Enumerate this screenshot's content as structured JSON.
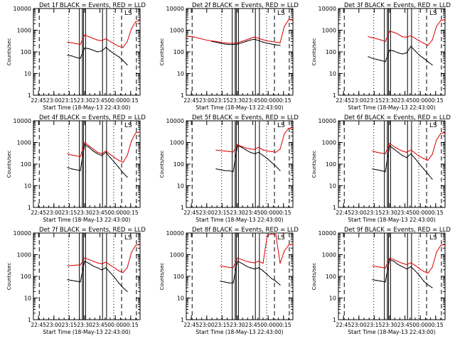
{
  "figure": {
    "shared": {
      "xlabel": "Start Time (18-May-13 22:43:00)",
      "ylabel": "Counts/sec",
      "x_tick_labels": [
        "22:45",
        "23:00",
        "23:15",
        "23:30",
        "23:45",
        "00:00",
        "00:15"
      ],
      "y_tick_labels": [
        "1",
        "10",
        "100",
        "1000",
        "10000"
      ],
      "colors": {
        "events": "#000000",
        "lld": "#dd0000",
        "axes": "#000000"
      }
    }
  },
  "chart_data": [
    {
      "type": "line",
      "title": "Det 1f BLACK = Events, RED = LLD",
      "legend_mark": "LS",
      "xlabel": "Start Time (18-May-13 22:43:00)",
      "ylabel": "Counts/sec",
      "yscale": "log",
      "ylim": [
        1,
        10000
      ],
      "xlim": [
        0,
        100
      ],
      "vertical_lines": {
        "dashed": [
          5.5,
          82.7,
          96.6
        ],
        "dotted": [
          33.1,
          75.3
        ],
        "solid": [
          43.1,
          45.9,
          46.9,
          48.9,
          64.8,
          68.6
        ]
      },
      "x": [
        0,
        4,
        8,
        12,
        16,
        20,
        24,
        28,
        32,
        36,
        40,
        44,
        48,
        52,
        56,
        60,
        64,
        68,
        72,
        76,
        80,
        84,
        88,
        92,
        96,
        100
      ],
      "series": [
        {
          "name": "Events",
          "values": [
            null,
            null,
            null,
            null,
            null,
            null,
            null,
            null,
            70,
            65,
            55,
            50,
            150,
            140,
            120,
            100,
            110,
            160,
            110,
            80,
            60,
            40,
            25,
            null,
            null,
            null
          ]
        },
        {
          "name": "LLD",
          "values": [
            null,
            null,
            null,
            null,
            null,
            null,
            null,
            null,
            280,
            260,
            240,
            220,
            600,
            500,
            420,
            350,
            330,
            400,
            300,
            230,
            180,
            160,
            300,
            1200,
            2500,
            2800
          ]
        }
      ]
    },
    {
      "type": "line",
      "title": "Det 2f BLACK = Events, RED = LLD",
      "legend_mark": "LS",
      "xlabel": "Start Time (18-May-13 22:43:00)",
      "ylabel": "Counts/sec",
      "yscale": "log",
      "ylim": [
        1,
        10000
      ],
      "xlim": [
        0,
        100
      ],
      "vertical_lines": {
        "dashed": [
          5.5,
          82.7,
          96.6
        ],
        "dotted": [
          33.1,
          75.3
        ],
        "solid": [
          43.1,
          45.9,
          46.9,
          48.9,
          64.8,
          68.6
        ]
      },
      "x": [
        0,
        4,
        8,
        12,
        16,
        20,
        24,
        28,
        32,
        36,
        40,
        44,
        48,
        52,
        56,
        60,
        64,
        68,
        72,
        76,
        80,
        84,
        88,
        92,
        96,
        100
      ],
      "series": [
        {
          "name": "Events",
          "values": [
            null,
            null,
            null,
            null,
            null,
            null,
            300,
            280,
            250,
            230,
            220,
            220,
            230,
            260,
            300,
            350,
            380,
            330,
            280,
            250,
            230,
            210,
            200,
            null,
            null,
            null
          ]
        },
        {
          "name": "LLD",
          "values": [
            500,
            520,
            480,
            420,
            380,
            340,
            320,
            300,
            280,
            260,
            250,
            250,
            260,
            300,
            350,
            420,
            480,
            420,
            360,
            320,
            300,
            280,
            260,
            1500,
            3000,
            3200
          ]
        }
      ]
    },
    {
      "type": "line",
      "title": "Det 3f BLACK = Events, RED = LLD",
      "legend_mark": "LS",
      "xlabel": "Start Time (18-May-13 22:43:00)",
      "ylabel": "Counts/sec",
      "yscale": "log",
      "ylim": [
        1,
        10000
      ],
      "xlim": [
        0,
        100
      ],
      "vertical_lines": {
        "dashed": [
          5.5,
          82.7,
          96.6
        ],
        "dotted": [
          33.1,
          75.3
        ],
        "solid": [
          43.1,
          45.9,
          46.9,
          48.9,
          64.8,
          68.6
        ]
      },
      "x": [
        0,
        4,
        8,
        12,
        16,
        20,
        24,
        28,
        32,
        36,
        40,
        44,
        48,
        52,
        56,
        60,
        64,
        68,
        72,
        76,
        80,
        84,
        88,
        92,
        96,
        100
      ],
      "series": [
        {
          "name": "Events",
          "values": [
            null,
            null,
            null,
            null,
            null,
            null,
            null,
            60,
            50,
            45,
            40,
            35,
            120,
            110,
            90,
            80,
            90,
            180,
            110,
            70,
            50,
            35,
            25,
            null,
            null,
            null
          ]
        },
        {
          "name": "LLD",
          "values": [
            null,
            null,
            null,
            null,
            null,
            null,
            null,
            500,
            450,
            400,
            350,
            300,
            900,
            800,
            650,
            500,
            480,
            550,
            420,
            320,
            250,
            200,
            350,
            1500,
            2800,
            3000
          ]
        }
      ]
    },
    {
      "type": "line",
      "title": "Det 4f BLACK = Events, RED = LLD",
      "legend_mark": "LS",
      "xlabel": "Start Time (18-May-13 22:43:00)",
      "ylabel": "Counts/sec",
      "yscale": "log",
      "ylim": [
        1,
        10000
      ],
      "xlim": [
        0,
        100
      ],
      "vertical_lines": {
        "dashed": [
          5.5,
          82.7,
          96.6
        ],
        "dotted": [
          33.1,
          75.3
        ],
        "solid": [
          43.1,
          45.9,
          46.9,
          48.9,
          64.8,
          68.6
        ]
      },
      "x": [
        0,
        4,
        8,
        12,
        16,
        20,
        24,
        28,
        32,
        36,
        40,
        44,
        48,
        52,
        56,
        60,
        64,
        68,
        72,
        76,
        80,
        84,
        88,
        92,
        96,
        100
      ],
      "series": [
        {
          "name": "Events",
          "values": [
            null,
            null,
            null,
            null,
            null,
            null,
            null,
            null,
            70,
            60,
            55,
            50,
            800,
            600,
            400,
            300,
            250,
            350,
            200,
            120,
            70,
            40,
            25,
            null,
            null,
            null
          ]
        },
        {
          "name": "LLD",
          "values": [
            null,
            null,
            null,
            null,
            null,
            null,
            null,
            null,
            300,
            260,
            240,
            220,
            1000,
            700,
            500,
            350,
            300,
            400,
            280,
            200,
            150,
            120,
            250,
            1200,
            2800,
            3000
          ]
        }
      ]
    },
    {
      "type": "line",
      "title": "Det 5f BLACK = Events, RED = LLD",
      "legend_mark": "LS",
      "xlabel": "Start Time (18-May-13 22:43:00)",
      "ylabel": "Counts/sec",
      "yscale": "log",
      "ylim": [
        1,
        10000
      ],
      "xlim": [
        0,
        100
      ],
      "vertical_lines": {
        "dashed": [
          5.5,
          82.7,
          96.6
        ],
        "dotted": [
          33.1,
          75.3
        ],
        "solid": [
          43.1,
          45.9,
          46.9,
          48.9,
          64.8,
          68.6
        ]
      },
      "x": [
        0,
        4,
        8,
        12,
        16,
        20,
        24,
        28,
        32,
        36,
        40,
        44,
        48,
        52,
        56,
        60,
        64,
        68,
        72,
        76,
        80,
        84,
        88,
        92,
        96,
        100
      ],
      "series": [
        {
          "name": "Events",
          "values": [
            null,
            null,
            null,
            null,
            null,
            null,
            null,
            60,
            55,
            50,
            50,
            45,
            700,
            600,
            450,
            350,
            300,
            350,
            250,
            180,
            120,
            80,
            50,
            null,
            null,
            null
          ]
        },
        {
          "name": "LLD",
          "values": [
            null,
            null,
            null,
            null,
            null,
            null,
            null,
            450,
            420,
            400,
            380,
            360,
            800,
            650,
            550,
            500,
            480,
            600,
            450,
            400,
            380,
            350,
            500,
            2500,
            4500,
            4800
          ]
        }
      ]
    },
    {
      "type": "line",
      "title": "Det 6f BLACK = Events, RED = LLD",
      "legend_mark": "LS",
      "xlabel": "Start Time (18-May-13 22:43:00)",
      "ylabel": "Counts/sec",
      "yscale": "log",
      "ylim": [
        1,
        10000
      ],
      "xlim": [
        0,
        100
      ],
      "vertical_lines": {
        "dashed": [
          5.5,
          82.7,
          96.6
        ],
        "dotted": [
          33.1,
          75.3
        ],
        "solid": [
          43.1,
          45.9,
          46.9,
          48.9,
          64.8,
          68.6
        ]
      },
      "x": [
        0,
        4,
        8,
        12,
        16,
        20,
        24,
        28,
        32,
        36,
        40,
        44,
        48,
        52,
        56,
        60,
        64,
        68,
        72,
        76,
        80,
        84,
        88,
        92,
        96,
        100
      ],
      "series": [
        {
          "name": "Events",
          "values": [
            null,
            null,
            null,
            null,
            null,
            null,
            null,
            null,
            60,
            55,
            50,
            45,
            700,
            500,
            350,
            250,
            200,
            300,
            180,
            100,
            60,
            35,
            20,
            null,
            null,
            null
          ]
        },
        {
          "name": "LLD",
          "values": [
            null,
            null,
            null,
            null,
            null,
            null,
            null,
            null,
            400,
            350,
            320,
            300,
            900,
            650,
            500,
            400,
            350,
            450,
            320,
            230,
            180,
            150,
            280,
            1300,
            2600,
            2800
          ]
        }
      ]
    },
    {
      "type": "line",
      "title": "Det 7f BLACK = Events, RED = LLD",
      "legend_mark": "LS",
      "xlabel": "Start Time (18-May-13 22:43:00)",
      "ylabel": "Counts/sec",
      "yscale": "log",
      "ylim": [
        1,
        10000
      ],
      "xlim": [
        0,
        100
      ],
      "vertical_lines": {
        "dashed": [
          5.5,
          82.7,
          96.6
        ],
        "dotted": [
          33.1,
          75.3
        ],
        "solid": [
          43.1,
          45.9,
          46.9,
          48.9,
          64.8,
          68.6
        ]
      },
      "x": [
        0,
        4,
        8,
        12,
        16,
        20,
        24,
        28,
        32,
        36,
        40,
        44,
        48,
        52,
        56,
        60,
        64,
        68,
        72,
        76,
        80,
        84,
        88,
        92,
        96,
        100
      ],
      "series": [
        {
          "name": "Events",
          "values": [
            null,
            null,
            null,
            null,
            null,
            null,
            null,
            null,
            70,
            65,
            60,
            55,
            500,
            400,
            300,
            250,
            200,
            250,
            150,
            90,
            50,
            30,
            20,
            null,
            null,
            null
          ]
        },
        {
          "name": "LLD",
          "values": [
            null,
            null,
            null,
            null,
            null,
            null,
            null,
            null,
            300,
            320,
            330,
            340,
            700,
            600,
            500,
            420,
            380,
            450,
            330,
            250,
            180,
            150,
            250,
            1300,
            2700,
            2900
          ]
        }
      ]
    },
    {
      "type": "line",
      "title": "Det 8f BLACK = Events, RED = LLD",
      "legend_mark": "LS",
      "xlabel": "Start Time (18-May-13 22:43:00)",
      "ylabel": "Counts/sec",
      "yscale": "log",
      "ylim": [
        1,
        10000
      ],
      "xlim": [
        0,
        100
      ],
      "vertical_lines": {
        "dashed": [
          5.5,
          82.7,
          96.6
        ],
        "dotted": [
          33.1,
          75.3
        ],
        "solid": [
          43.1,
          45.9,
          46.9,
          48.9,
          64.8,
          68.6
        ]
      },
      "x": [
        0,
        4,
        8,
        12,
        16,
        20,
        24,
        28,
        32,
        36,
        40,
        44,
        48,
        52,
        56,
        60,
        64,
        68,
        72,
        76,
        80,
        84,
        88,
        92,
        96,
        100
      ],
      "series": [
        {
          "name": "Events",
          "values": [
            null,
            null,
            null,
            null,
            null,
            null,
            null,
            null,
            60,
            55,
            50,
            50,
            500,
            400,
            300,
            250,
            220,
            250,
            180,
            120,
            80,
            60,
            40,
            null,
            null,
            null
          ]
        },
        {
          "name": "LLD",
          "values": [
            null,
            null,
            null,
            null,
            null,
            null,
            null,
            null,
            300,
            280,
            260,
            250,
            700,
            600,
            500,
            450,
            420,
            500,
            400,
            8000,
            9000,
            8500,
            400,
            1500,
            2800,
            3000
          ]
        }
      ]
    },
    {
      "type": "line",
      "title": "Det 9f BLACK = Events, RED = LLD",
      "legend_mark": "LS",
      "xlabel": "Start Time (18-May-13 22:43:00)",
      "ylabel": "Counts/sec",
      "yscale": "log",
      "ylim": [
        1,
        10000
      ],
      "xlim": [
        0,
        100
      ],
      "vertical_lines": {
        "dashed": [
          5.5,
          82.7,
          96.6
        ],
        "dotted": [
          33.1,
          75.3
        ],
        "solid": [
          43.1,
          45.9,
          46.9,
          48.9,
          64.8,
          68.6
        ]
      },
      "x": [
        0,
        4,
        8,
        12,
        16,
        20,
        24,
        28,
        32,
        36,
        40,
        44,
        48,
        52,
        56,
        60,
        64,
        68,
        72,
        76,
        80,
        84,
        88,
        92,
        96,
        100
      ],
      "series": [
        {
          "name": "Events",
          "values": [
            null,
            null,
            null,
            null,
            null,
            null,
            null,
            null,
            70,
            65,
            60,
            55,
            600,
            500,
            350,
            280,
            220,
            280,
            180,
            110,
            60,
            40,
            30,
            null,
            null,
            null
          ]
        },
        {
          "name": "LLD",
          "values": [
            null,
            null,
            null,
            null,
            null,
            null,
            null,
            null,
            300,
            280,
            260,
            240,
            700,
            600,
            480,
            400,
            350,
            420,
            320,
            230,
            170,
            140,
            260,
            1300,
            2700,
            2900
          ]
        }
      ]
    }
  ]
}
